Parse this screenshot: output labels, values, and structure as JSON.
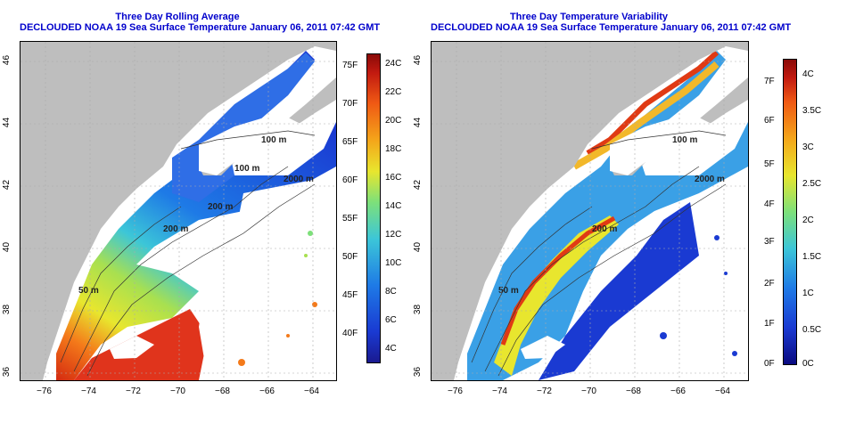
{
  "left_panel": {
    "title": "Three Day Rolling Average",
    "subtitle": "DECLOUDED NOAA 19 Sea Surface Temperature January 06, 2011 07:42 GMT",
    "colorbar": {
      "celsius_labels": [
        "24C",
        "22C",
        "20C",
        "18C",
        "16C",
        "14C",
        "12C",
        "10C",
        "8C",
        "6C",
        "4C"
      ],
      "fahrenheit_labels": [
        "75F",
        "70F",
        "65F",
        "60F",
        "55F",
        "50F",
        "45F",
        "40F"
      ]
    },
    "contour_labels": [
      "100 m",
      "100 m",
      "2000 m",
      "200 m",
      "200 m",
      "50 m"
    ]
  },
  "right_panel": {
    "title": "Three Day Temperature Variability",
    "subtitle": "DECLOUDED NOAA 19 Sea Surface Temperature January 06, 2011 07:42 GMT",
    "colorbar": {
      "celsius_labels": [
        "4C",
        "3.5C",
        "3C",
        "2.5C",
        "2C",
        "1.5C",
        "1C",
        "0.5C",
        "0C"
      ],
      "fahrenheit_labels": [
        "7F",
        "6F",
        "5F",
        "4F",
        "3F",
        "2F",
        "1F",
        "0F"
      ]
    },
    "contour_labels": [
      "100 m",
      "2000 m",
      "200 m",
      "50 m"
    ]
  },
  "axes": {
    "longitude_labels": [
      "−76",
      "−74",
      "−72",
      "−70",
      "−68",
      "−66",
      "−64"
    ],
    "latitude_labels": [
      "46",
      "44",
      "42",
      "40",
      "38",
      "36"
    ]
  },
  "colors": {
    "title": "#0000cc",
    "land": "#bebebe",
    "cloud_nodata": "#ffffff",
    "grid": "#aaaaaa"
  }
}
